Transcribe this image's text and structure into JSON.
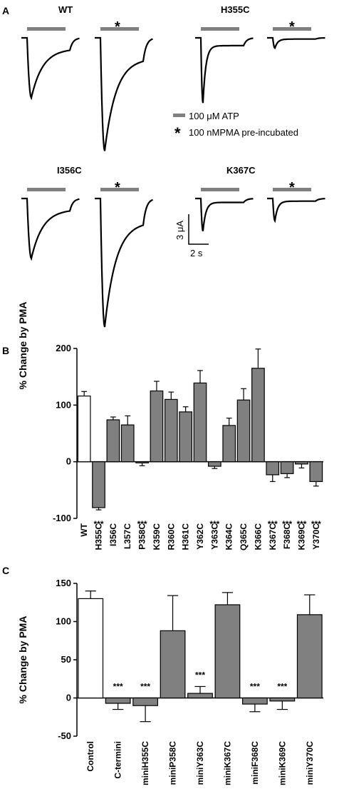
{
  "chart_data": [
    {
      "panel": "A",
      "type": "line",
      "traces": [
        {
          "label": "WT",
          "pma_star": "",
          "peak_uA": 3.5,
          "decay": "slow"
        },
        {
          "label": "",
          "pma_star": "*",
          "peak_uA": 6.6,
          "decay": "slow"
        },
        {
          "label": "H355C",
          "pma_star": "",
          "peak_uA": 3.8,
          "decay": "fast"
        },
        {
          "label": "",
          "pma_star": "*",
          "peak_uA": 0.6,
          "decay": "fast"
        },
        {
          "label": "I356C",
          "pma_star": "",
          "peak_uA": 3.5,
          "decay": "slow"
        },
        {
          "label": "",
          "pma_star": "*",
          "peak_uA": 7.5,
          "decay": "slow"
        },
        {
          "label": "K367C",
          "pma_star": "",
          "peak_uA": 1.9,
          "decay": "fast"
        },
        {
          "label": "",
          "pma_star": "*",
          "peak_uA": 1.3,
          "decay": "fast"
        }
      ],
      "legend": {
        "bar_label": "100 μM ATP",
        "star_symbol": "*",
        "star_label": "100 nMPMA pre-incubated"
      },
      "scale_bar": {
        "y_label": "3 μA",
        "x_label": "2 s"
      }
    },
    {
      "panel": "B",
      "type": "bar",
      "ylabel": "% Change by PMA",
      "ylim": [
        -100,
        200
      ],
      "yticks": [
        -100,
        0,
        100,
        200
      ],
      "categories": [
        "WT",
        "H355C",
        "I356C",
        "L357C",
        "P358C",
        "K359C",
        "R360C",
        "H361C",
        "Y362C",
        "Y363C",
        "K364C",
        "Q365C",
        "K366C",
        "K367C",
        "F368C",
        "K369C",
        "Y370C"
      ],
      "values": [
        116,
        -81,
        74,
        65,
        -2,
        125,
        110,
        88,
        139,
        -8,
        64,
        109,
        165,
        -23,
        -21,
        -4,
        -35
      ],
      "errors": [
        8,
        4,
        5,
        16,
        5,
        17,
        13,
        9,
        22,
        4,
        13,
        20,
        34,
        12,
        7,
        7,
        8
      ],
      "significance": [
        "",
        "***",
        "",
        "",
        "***",
        "",
        "",
        "",
        "",
        "***",
        "",
        "",
        "",
        "***",
        "***",
        "***",
        "***"
      ],
      "fills": [
        "#ffffff",
        "#808080",
        "#808080",
        "#808080",
        "#808080",
        "#808080",
        "#808080",
        "#808080",
        "#808080",
        "#808080",
        "#808080",
        "#808080",
        "#808080",
        "#808080",
        "#808080",
        "#808080",
        "#808080"
      ]
    },
    {
      "panel": "C",
      "type": "bar",
      "ylabel": "% Change  by  PMA",
      "ylim": [
        -50,
        150
      ],
      "yticks": [
        -50,
        0,
        50,
        100,
        150
      ],
      "categories": [
        "Control",
        "C-termini",
        "miniH355C",
        "miniP358C",
        "miniY363C",
        "miniK367C",
        "miniF368C",
        "miniK369C",
        "miniY370C"
      ],
      "values": [
        130,
        -7,
        -10,
        88,
        6,
        122,
        -8,
        -4,
        109
      ],
      "errors": [
        10,
        8,
        21,
        46,
        9,
        16,
        10,
        11,
        26
      ],
      "significance": [
        "",
        "***",
        "***",
        "",
        "***",
        "",
        "***",
        "***",
        ""
      ],
      "fills": [
        "#ffffff",
        "#808080",
        "#808080",
        "#808080",
        "#808080",
        "#808080",
        "#808080",
        "#808080",
        "#808080"
      ]
    }
  ]
}
